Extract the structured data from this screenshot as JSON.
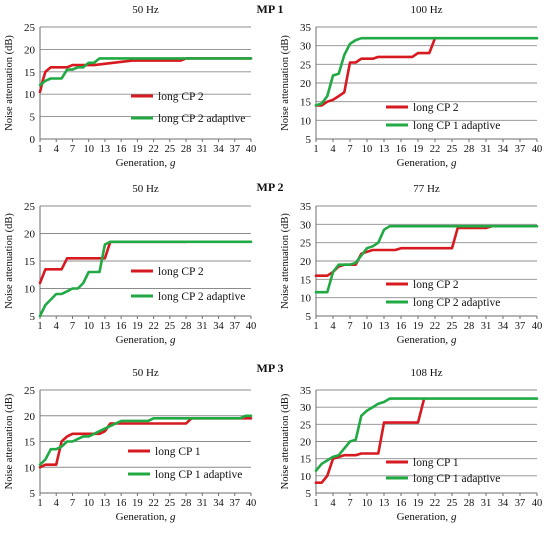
{
  "row_labels": [
    "MP 1",
    "MP 2",
    "MP 3"
  ],
  "colors": {
    "red": "#d71920",
    "green": "#21a943",
    "grid": "#8c8c8c",
    "axis": "#6e6e6e"
  },
  "chart_data": [
    {
      "type": "line",
      "title": "50 Hz",
      "xlabel": "Generation, g",
      "ylabel": "Noise attenuation (dB)",
      "ylim": [
        0,
        25
      ],
      "yticks": [
        0,
        5,
        10,
        15,
        20,
        25
      ],
      "xlim": [
        1,
        40
      ],
      "xticks": [
        1,
        4,
        7,
        10,
        13,
        16,
        19,
        22,
        25,
        28,
        31,
        34,
        37,
        40
      ],
      "grid": true,
      "legend": "center-right",
      "series": [
        {
          "name": "long CP 2",
          "color": "#d71920",
          "x": [
            1,
            1.5,
            2,
            3,
            4,
            6,
            7,
            11,
            18,
            27,
            28,
            40
          ],
          "y": [
            10.5,
            13,
            15,
            16,
            16,
            16,
            16.5,
            16.5,
            17.5,
            17.5,
            18,
            18
          ]
        },
        {
          "name": "long CP 2 adaptive",
          "color": "#21a943",
          "x": [
            1,
            1.5,
            2,
            3,
            5,
            6,
            7,
            8,
            9,
            10,
            11,
            12,
            13,
            40
          ],
          "y": [
            12,
            12.5,
            13,
            13.5,
            13.5,
            15.5,
            15.5,
            16,
            16,
            17,
            17,
            18,
            18,
            18
          ]
        }
      ]
    },
    {
      "type": "line",
      "title": "100 Hz",
      "xlabel": "Generation, g",
      "ylabel": "Noise attenuation (dB)",
      "ylim": [
        5,
        35
      ],
      "yticks": [
        5,
        10,
        15,
        20,
        25,
        30,
        35
      ],
      "xlim": [
        1,
        40
      ],
      "xticks": [
        1,
        4,
        7,
        10,
        13,
        16,
        19,
        22,
        25,
        28,
        31,
        34,
        37,
        40
      ],
      "grid": true,
      "legend": "bottom-right",
      "series": [
        {
          "name": "long CP 2",
          "color": "#d71920",
          "x": [
            1,
            2,
            3,
            4,
            5,
            6,
            7,
            8,
            9,
            10,
            11,
            12,
            13,
            14,
            18,
            19,
            20,
            21,
            22
          ],
          "y": [
            14,
            14,
            15,
            15.5,
            16.5,
            17.5,
            25.5,
            25.5,
            26.5,
            26.5,
            26.5,
            27,
            27,
            27,
            27,
            28,
            28,
            28,
            32
          ]
        },
        {
          "name": "long CP 1 adaptive",
          "color": "#21a943",
          "x": [
            1,
            2,
            3,
            4,
            5,
            6,
            7,
            8,
            9,
            40
          ],
          "y": [
            14,
            14.5,
            16.5,
            22,
            22.5,
            27.5,
            30.5,
            31.5,
            32,
            32
          ]
        }
      ]
    },
    {
      "type": "line",
      "title": "50 Hz",
      "xlabel": "Generation, g",
      "ylabel": "Noise attenuation (dB)",
      "ylim": [
        5,
        25
      ],
      "yticks": [
        5,
        10,
        15,
        20,
        25
      ],
      "xlim": [
        1,
        40
      ],
      "xticks": [
        1,
        4,
        7,
        10,
        13,
        16,
        19,
        22,
        25,
        28,
        31,
        34,
        37,
        40
      ],
      "grid": true,
      "legend": "center-right",
      "series": [
        {
          "name": "long CP 2",
          "color": "#d71920",
          "x": [
            1,
            2,
            3,
            5,
            6,
            11,
            12,
            13,
            14,
            28
          ],
          "y": [
            11,
            13.5,
            13.5,
            13.5,
            15.5,
            15.5,
            15.5,
            15.5,
            18.5,
            18.5
          ]
        },
        {
          "name": "long CP 2 adaptive",
          "color": "#21a943",
          "x": [
            1,
            2,
            3,
            4,
            5,
            6,
            7,
            8,
            9,
            10,
            11,
            12,
            13,
            14,
            15,
            40
          ],
          "y": [
            5,
            7,
            8,
            9,
            9,
            9.5,
            10,
            10,
            11,
            13,
            13,
            13,
            18,
            18.5,
            18.5,
            18.5
          ]
        }
      ]
    },
    {
      "type": "line",
      "title": "77 Hz",
      "xlabel": "Generation, g",
      "ylabel": "Noise attenuation (dB)",
      "ylim": [
        5,
        35
      ],
      "yticks": [
        5,
        10,
        15,
        20,
        25,
        30,
        35
      ],
      "xlim": [
        1,
        40
      ],
      "xticks": [
        1,
        4,
        7,
        10,
        13,
        16,
        19,
        22,
        25,
        28,
        31,
        34,
        37,
        40
      ],
      "grid": true,
      "legend": "bottom-right",
      "series": [
        {
          "name": "long CP 2",
          "color": "#d71920",
          "x": [
            1,
            3,
            4,
            5,
            6,
            8,
            9,
            10,
            11,
            13,
            14,
            15,
            16,
            25,
            26,
            31,
            32
          ],
          "y": [
            16,
            16,
            17,
            18.5,
            19,
            19,
            22,
            22.5,
            23,
            23,
            23,
            23,
            23.5,
            23.5,
            29,
            29,
            29.5
          ]
        },
        {
          "name": "long CP 2 adaptive",
          "color": "#21a943",
          "x": [
            1,
            2,
            3,
            4,
            5,
            6,
            7,
            8,
            9,
            10,
            11,
            12,
            13,
            14,
            15,
            40
          ],
          "y": [
            11.5,
            11.5,
            11.5,
            17,
            19,
            19,
            19,
            19.5,
            21.5,
            23.5,
            24,
            25,
            28.5,
            29.5,
            29.5,
            29.5
          ]
        }
      ]
    },
    {
      "type": "line",
      "title": "50 Hz",
      "xlabel": "Generation, g",
      "ylabel": "Noise attenuation (dB)",
      "ylim": [
        5,
        25
      ],
      "yticks": [
        5,
        10,
        15,
        20,
        25
      ],
      "xlim": [
        1,
        40
      ],
      "xticks": [
        1,
        4,
        7,
        10,
        13,
        16,
        19,
        22,
        25,
        28,
        31,
        34,
        37,
        40
      ],
      "grid": true,
      "legend": "bottom-right",
      "series": [
        {
          "name": "long CP 1",
          "color": "#d71920",
          "x": [
            1,
            2,
            4,
            5,
            6,
            7,
            10,
            11,
            12,
            13,
            14,
            28,
            29,
            40
          ],
          "y": [
            10,
            10.5,
            10.5,
            15,
            16,
            16.5,
            16.5,
            16.5,
            16.5,
            17,
            18.5,
            18.5,
            19.5,
            19.5
          ]
        },
        {
          "name": "long CP 1 adaptive",
          "color": "#21a943",
          "x": [
            1,
            2,
            3,
            4,
            5,
            6,
            7,
            8,
            9,
            10,
            11,
            12,
            13,
            14,
            15,
            16,
            17,
            18,
            19,
            20,
            21,
            22,
            38,
            39,
            40
          ],
          "y": [
            10.5,
            11.5,
            13.5,
            13.5,
            14,
            15,
            15,
            15.5,
            16,
            16,
            16.5,
            17,
            17.5,
            18,
            18.5,
            19,
            19,
            19,
            19,
            19,
            19,
            19.5,
            19.5,
            20,
            20
          ]
        }
      ]
    },
    {
      "type": "line",
      "title": "108 Hz",
      "xlabel": "Generation, g",
      "ylabel": "Noise attenuation (dB)",
      "ylim": [
        5,
        35
      ],
      "yticks": [
        5,
        10,
        15,
        20,
        25,
        30,
        35
      ],
      "xlim": [
        1,
        40
      ],
      "xticks": [
        1,
        4,
        7,
        10,
        13,
        16,
        19,
        22,
        25,
        28,
        31,
        34,
        37,
        40
      ],
      "grid": true,
      "legend": "bottom-right",
      "series": [
        {
          "name": "long CP 1",
          "color": "#d71920",
          "x": [
            1,
            2,
            3,
            4,
            5,
            6,
            7,
            8,
            9,
            10,
            11,
            12,
            13,
            14,
            19,
            20
          ],
          "y": [
            8,
            8,
            10,
            15,
            15.5,
            16,
            16,
            16,
            16.5,
            16.5,
            16.5,
            16.5,
            25.5,
            25.5,
            25.5,
            32
          ]
        },
        {
          "name": "long CP 1 adaptive",
          "color": "#21a943",
          "x": [
            1,
            2,
            3,
            4,
            5,
            6,
            7,
            8,
            9,
            10,
            11,
            12,
            13,
            14,
            40
          ],
          "y": [
            11.5,
            13.5,
            14.5,
            15.5,
            16,
            18,
            20,
            20.5,
            27.5,
            29,
            30,
            31,
            31.5,
            32.5,
            32.5
          ]
        }
      ]
    }
  ]
}
